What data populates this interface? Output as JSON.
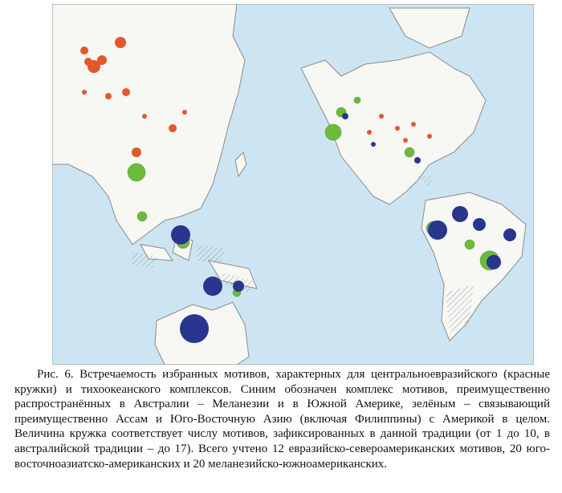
{
  "figure": {
    "caption": "Рис. 6. Встречаемость избранных мотивов, характерных для центральноевразийского (красные кружки) и тихоокеанского комплексов. Синим обозначен комплекс мотивов, преимущественно распространённых в Австралии – Меланезии и в Южной Америке, зелёным – связывающий преимущественно Ассам и Юго-Восточную Азию (включая Филиппины) с Америкой в целом. Величина кружка соответствует числу мотивов, зафиксированных в данной традиции (от 1 до 10, в австралийской традиции – до 17). Всего учтено 12 евразийско-североамериканских мотивов, 20 юго-восточноазиатско-американских и 20 меланезийско-южноамериканских."
  }
}
